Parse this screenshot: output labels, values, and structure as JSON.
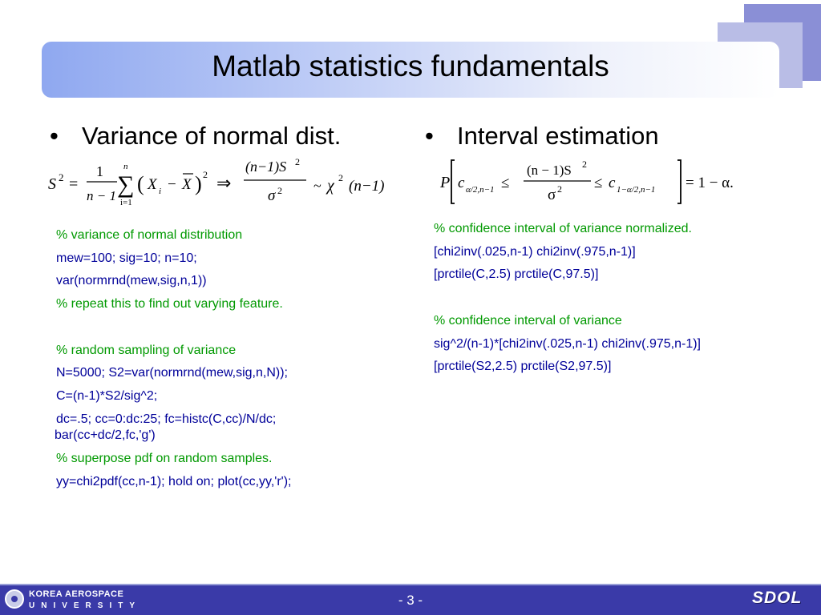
{
  "header": {
    "title": "Matlab statistics fundamentals"
  },
  "left": {
    "bullet": "Variance of normal dist.",
    "formula": {
      "S2": "S",
      "sup2": "2",
      "eq": "=",
      "one": "1",
      "nm1": "n − 1",
      "sum_top": "n",
      "sum_bot": "i=1",
      "sigma_sym": "∑",
      "paren_content": "X",
      "sub_i": "i",
      "minus": "−",
      "xbar": "X",
      "implies": "⇒",
      "num": "(n−1)S",
      "den": "σ",
      "tilde": "~",
      "chi": "χ",
      "chi_arg": "(n−1)"
    },
    "code": [
      {
        "text": "% variance of normal distribution",
        "type": "comment"
      },
      {
        "text": "mew=100; sig=10; n=10;",
        "type": "cmd"
      },
      {
        "text": "var(normrnd(mew,sig,n,1))",
        "type": "cmd"
      },
      {
        "text": "% repeat this to find out varying feature.",
        "type": "comment"
      },
      {
        "text": "",
        "type": "blank"
      },
      {
        "text": "% random sampling of variance",
        "type": "comment"
      },
      {
        "text": "N=5000; S2=var(normrnd(mew,sig,n,N));",
        "type": "cmd"
      },
      {
        "text": "C=(n-1)*S2/sig^2;",
        "type": "cmd"
      },
      {
        "text": "dc=.5; cc=0:dc:25; fc=histc(C,cc)/N/dc;",
        "type": "cmd"
      },
      {
        "text": "bar(cc+dc/2,fc,'g')",
        "type": "cmd-wrap"
      },
      {
        "text": "% superpose pdf on random samples.",
        "type": "comment"
      },
      {
        "text": "yy=chi2pdf(cc,n-1); hold on; plot(cc,yy,'r');",
        "type": "cmd"
      }
    ]
  },
  "right": {
    "bullet": "Interval estimation",
    "formula": {
      "P": "P",
      "c_left": "c",
      "c_left_sub": "α/2,n−1",
      "le": "≤",
      "num": "(n − 1)S",
      "den": "σ",
      "c_right": "c",
      "c_right_sub": "1−α/2,n−1",
      "rhs": "= 1 − α."
    },
    "code": [
      {
        "text": "% confidence interval of variance normalized.",
        "type": "comment"
      },
      {
        "text": "[chi2inv(.025,n-1) chi2inv(.975,n-1)]",
        "type": "cmd"
      },
      {
        "text": "[prctile(C,2.5) prctile(C,97.5)]",
        "type": "cmd"
      },
      {
        "text": "",
        "type": "blank"
      },
      {
        "text": "% confidence interval of variance",
        "type": "comment"
      },
      {
        "text": "sig^2/(n-1)*[chi2inv(.025,n-1) chi2inv(.975,n-1)]",
        "type": "cmd"
      },
      {
        "text": "[prctile(S2,2.5) prctile(S2,97.5)]",
        "type": "cmd"
      }
    ]
  },
  "footer": {
    "university_line1": "KOREA AEROSPACE",
    "university_line2": "UNIVERSITY",
    "page": "- 3 -",
    "brand": "SDOL"
  },
  "colors": {
    "comment": "#009900",
    "code": "#000099",
    "footer": "#3a3aa8"
  }
}
